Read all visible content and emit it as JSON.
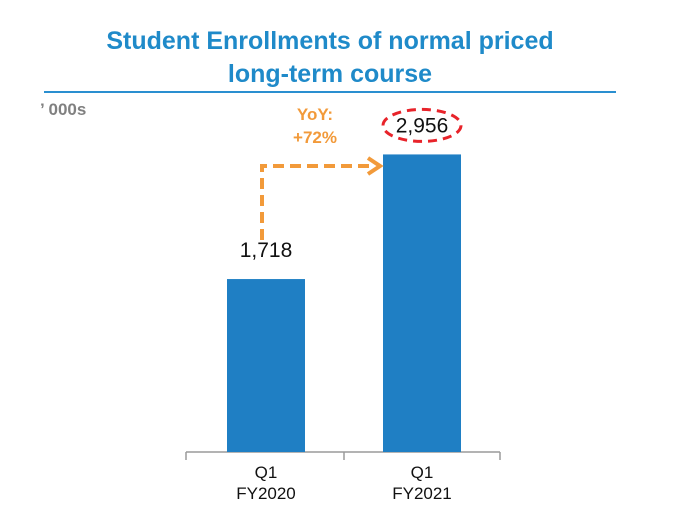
{
  "colors": {
    "title": "#1f8ac9",
    "rule": "#2a8fd0",
    "bar": "#1f7fc4",
    "arrow": "#f29a3a",
    "highlight": "#e8232a",
    "axis": "#9a9a9a",
    "unit": "#808080"
  },
  "chart_data": {
    "type": "bar",
    "title": "Student Enrollments of normal priced long-term course",
    "title_lines": [
      "Student Enrollments of normal priced",
      "long-term course"
    ],
    "unit_label": "’ 000s",
    "categories": [
      "Q1\nFY2020",
      "Q1\nFY2021"
    ],
    "category_lines": [
      [
        "Q1",
        "FY2020"
      ],
      [
        "Q1",
        "FY2021"
      ]
    ],
    "values": [
      1718,
      2956
    ],
    "data_labels": [
      "1,718",
      "2,956"
    ],
    "ylim": [
      0,
      3000
    ],
    "grid": false,
    "legend": "none",
    "annotation": {
      "lines": [
        "YoY:",
        "+72%"
      ],
      "from_category": 0,
      "to_category": 1,
      "highlighted_label": 1
    }
  }
}
